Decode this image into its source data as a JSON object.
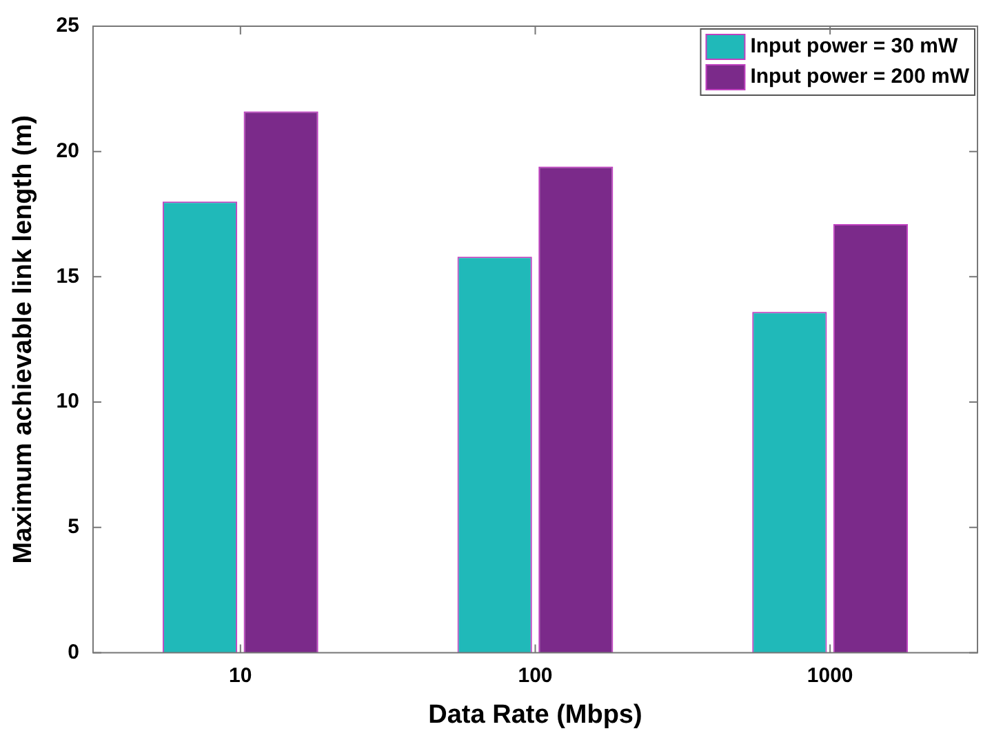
{
  "chart_data": {
    "type": "bar",
    "xlabel": "Data Rate (Mbps)",
    "ylabel": "Maximum achievable link length (m)",
    "categories": [
      "10",
      "100",
      "1000"
    ],
    "series": [
      {
        "name": "Input power = 30 mW",
        "color": "#20b9b9",
        "values": [
          18.0,
          15.8,
          13.6
        ]
      },
      {
        "name": "Input power = 200 mW",
        "color": "#7b2a8a",
        "values": [
          21.6,
          19.4,
          17.1
        ]
      }
    ],
    "ylim": [
      0,
      25
    ],
    "yticks": [
      0,
      5,
      10,
      15,
      20,
      25
    ],
    "grid": false,
    "legend": "top right"
  }
}
